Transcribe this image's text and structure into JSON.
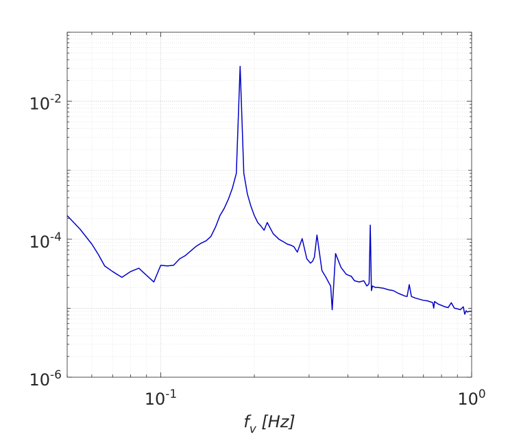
{
  "chart_data": {
    "type": "line",
    "xlabel_main": "f",
    "xlabel_sub": "v",
    "xlabel_unit": "[Hz]",
    "xscale": "log",
    "yscale": "log",
    "xlim": [
      0.05,
      1.0
    ],
    "ylim": [
      1e-06,
      0.1
    ],
    "grid": true,
    "minor_grid": true,
    "x_ticks": [
      {
        "value": 0.1,
        "base": "10",
        "exp": "-1"
      },
      {
        "value": 1.0,
        "base": "10",
        "exp": "0"
      }
    ],
    "y_ticks": [
      {
        "value": 1e-06,
        "base": "10",
        "exp": "-6"
      },
      {
        "value": 0.0001,
        "base": "10",
        "exp": "-4"
      },
      {
        "value": 0.01,
        "base": "10",
        "exp": "-2"
      }
    ],
    "series": [
      {
        "color": "#0000c8",
        "x": [
          0.05,
          0.055,
          0.06,
          0.063,
          0.066,
          0.07,
          0.075,
          0.08,
          0.085,
          0.09,
          0.095,
          0.1,
          0.105,
          0.11,
          0.115,
          0.12,
          0.125,
          0.13,
          0.135,
          0.14,
          0.145,
          0.15,
          0.155,
          0.16,
          0.165,
          0.17,
          0.175,
          0.18,
          0.185,
          0.19,
          0.195,
          0.2,
          0.205,
          0.21,
          0.215,
          0.22,
          0.23,
          0.24,
          0.25,
          0.255,
          0.262,
          0.268,
          0.275,
          0.285,
          0.295,
          0.303,
          0.308,
          0.312,
          0.318,
          0.33,
          0.34,
          0.348,
          0.352,
          0.356,
          0.365,
          0.38,
          0.395,
          0.41,
          0.42,
          0.435,
          0.45,
          0.46,
          0.465,
          0.468,
          0.472,
          0.476,
          0.48,
          0.49,
          0.5,
          0.52,
          0.54,
          0.56,
          0.58,
          0.6,
          0.61,
          0.62,
          0.63,
          0.64,
          0.66,
          0.68,
          0.7,
          0.72,
          0.74,
          0.75,
          0.755,
          0.76,
          0.78,
          0.8,
          0.82,
          0.84,
          0.86,
          0.88,
          0.9,
          0.92,
          0.94,
          0.95,
          0.96,
          0.97,
          0.98,
          1.0
        ],
        "y": [
          0.00022,
          0.00014,
          8.5e-05,
          6e-05,
          4.1e-05,
          3.4e-05,
          2.8e-05,
          3.4e-05,
          3.8e-05,
          3e-05,
          2.4e-05,
          4.2e-05,
          4.1e-05,
          4.2e-05,
          5.2e-05,
          5.8e-05,
          6.8e-05,
          7.9e-05,
          8.8e-05,
          9.5e-05,
          0.00011,
          0.00015,
          0.00022,
          0.00028,
          0.00038,
          0.00055,
          0.0009,
          0.032,
          0.0009,
          0.00045,
          0.0003,
          0.00022,
          0.000175,
          0.000155,
          0.000135,
          0.000175,
          0.00012,
          0.0001,
          9e-05,
          8.5e-05,
          8.2e-05,
          7.8e-05,
          6.5e-05,
          0.000102,
          5.2e-05,
          4.5e-05,
          4.8e-05,
          5.5e-05,
          0.000115,
          3.5e-05,
          2.8e-05,
          2.3e-05,
          2.1e-05,
          9.5e-06,
          6.2e-05,
          3.9e-05,
          3.1e-05,
          2.9e-05,
          2.5e-05,
          2.4e-05,
          2.5e-05,
          2.1e-05,
          2.2e-05,
          2.3e-05,
          0.00016,
          1.8e-05,
          2.1e-05,
          2e-05,
          2e-05,
          1.95e-05,
          1.85e-05,
          1.8e-05,
          1.65e-05,
          1.55e-05,
          1.5e-05,
          1.48e-05,
          2.2e-05,
          1.48e-05,
          1.4e-05,
          1.35e-05,
          1.3e-05,
          1.28e-05,
          1.23e-05,
          1.2e-05,
          1e-05,
          1.25e-05,
          1.15e-05,
          1.1e-05,
          1.05e-05,
          1.02e-05,
          1.2e-05,
          1e-05,
          9.8e-06,
          9.5e-06,
          1.05e-05,
          8.2e-06,
          9.2e-06,
          8.8e-06,
          9e-06,
          9e-06
        ]
      }
    ]
  }
}
